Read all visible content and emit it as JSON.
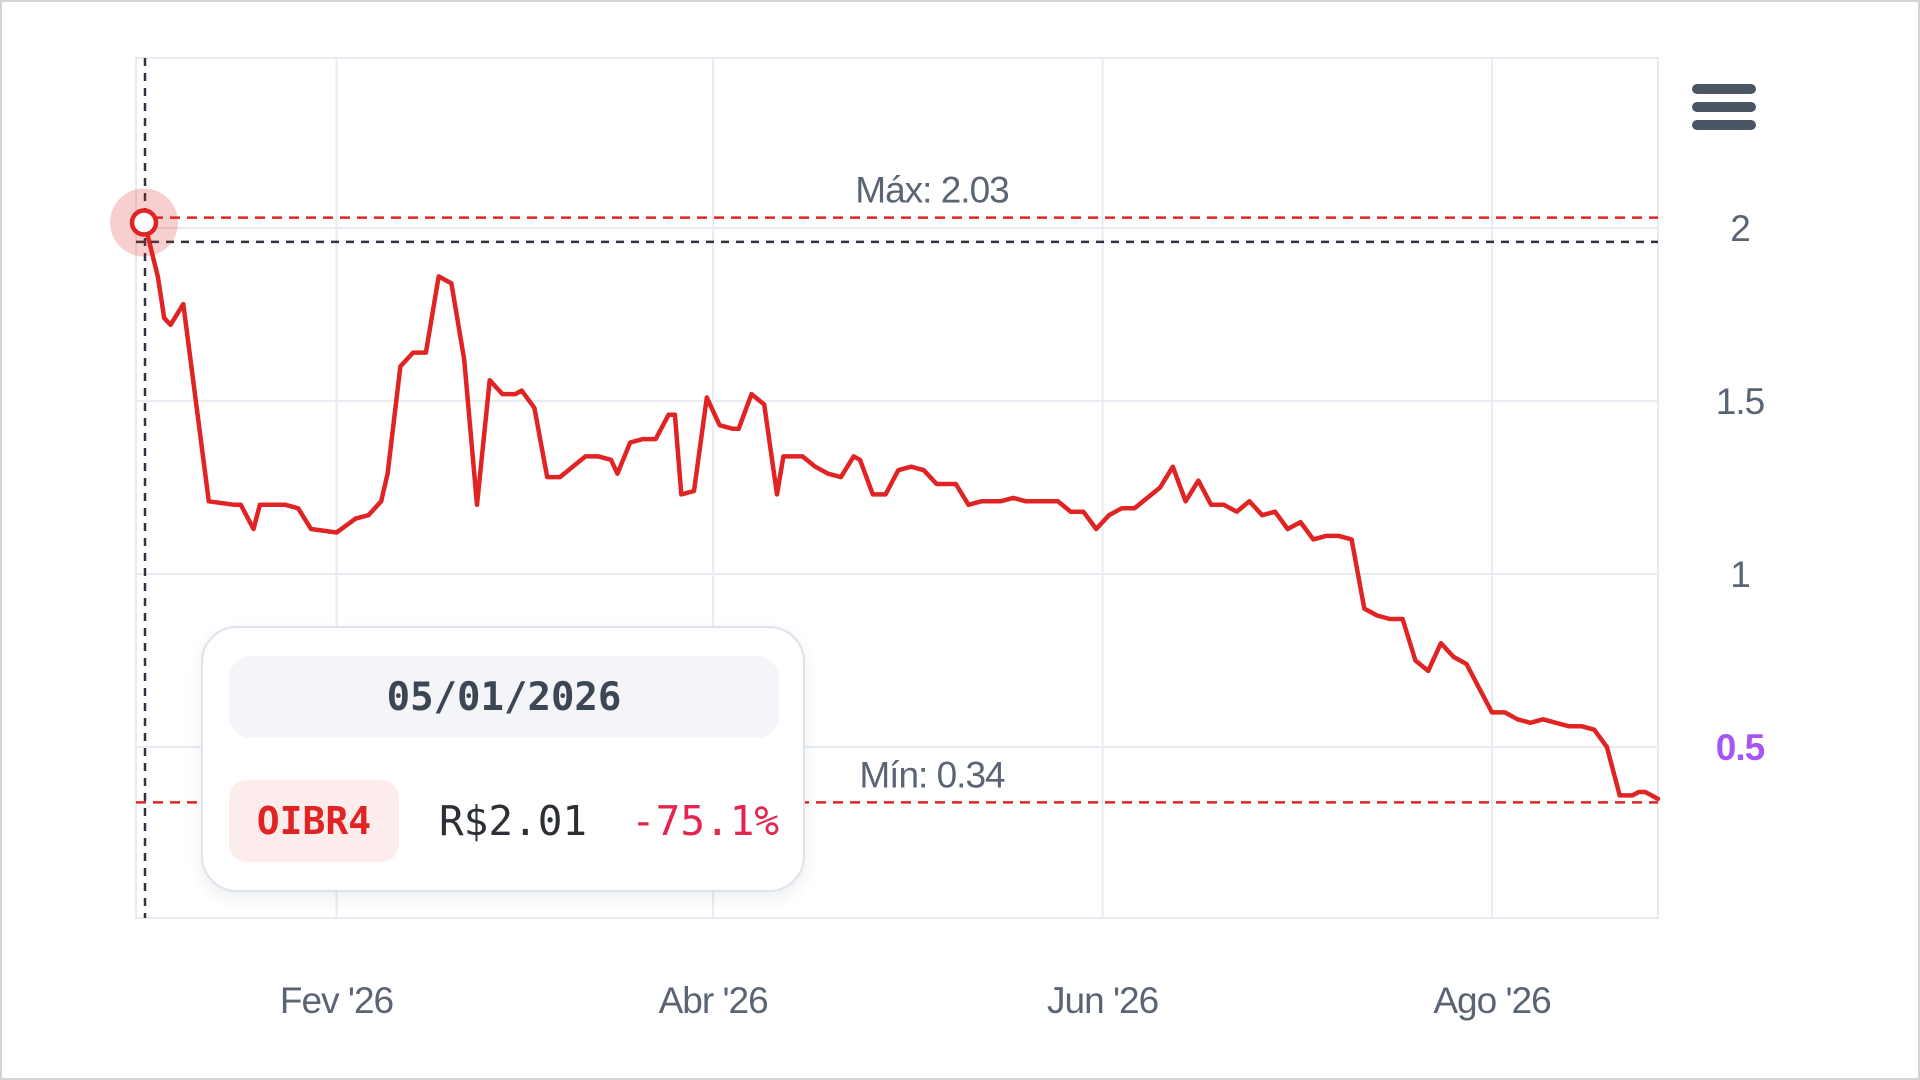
{
  "chart_data": {
    "type": "line",
    "title": "",
    "xlabel": "",
    "ylabel": "",
    "x_ticks": [
      {
        "date": "2026-02-01",
        "label": "Fev '26"
      },
      {
        "date": "2026-04-01",
        "label": "Abr '26"
      },
      {
        "date": "2026-06-01",
        "label": "Jun '26"
      },
      {
        "date": "2026-08-01",
        "label": "Ago '26"
      }
    ],
    "y_ticks": [
      0.5,
      1,
      1.5,
      2
    ],
    "y_tick_labels": [
      "0.5",
      "1",
      "1.5",
      "2"
    ],
    "xlim": [
      "2026-01-01",
      "2026-08-27"
    ],
    "ylim": [
      0,
      2.5
    ],
    "grid": true,
    "last_value_tick": "0.5",
    "reference_lines": {
      "max": {
        "value": 2.03,
        "label": "Máx: 2.03"
      },
      "min": {
        "value": 0.34,
        "label": "Mín: 0.34"
      }
    },
    "crosshair": {
      "date": "2026-01-02",
      "value": 1.96
    },
    "series": [
      {
        "color": "#e02424",
        "points": [
          [
            "2026-01-02",
            2.01
          ],
          [
            "2026-01-04",
            1.86
          ],
          [
            "2026-01-05",
            1.74
          ],
          [
            "2026-01-06",
            1.72
          ],
          [
            "2026-01-08",
            1.78
          ],
          [
            "2026-01-12",
            1.21
          ],
          [
            "2026-01-16",
            1.2
          ],
          [
            "2026-01-17",
            1.2
          ],
          [
            "2026-01-19",
            1.13
          ],
          [
            "2026-01-20",
            1.2
          ],
          [
            "2026-01-24",
            1.2
          ],
          [
            "2026-01-26",
            1.19
          ],
          [
            "2026-01-28",
            1.13
          ],
          [
            "2026-02-01",
            1.12
          ],
          [
            "2026-02-04",
            1.16
          ],
          [
            "2026-02-06",
            1.17
          ],
          [
            "2026-02-08",
            1.21
          ],
          [
            "2026-02-09",
            1.29
          ],
          [
            "2026-02-11",
            1.6
          ],
          [
            "2026-02-13",
            1.64
          ],
          [
            "2026-02-15",
            1.64
          ],
          [
            "2026-02-17",
            1.86
          ],
          [
            "2026-02-19",
            1.84
          ],
          [
            "2026-02-21",
            1.62
          ],
          [
            "2026-02-23",
            1.2
          ],
          [
            "2026-02-25",
            1.56
          ],
          [
            "2026-02-27",
            1.52
          ],
          [
            "2026-03-01",
            1.52
          ],
          [
            "2026-03-02",
            1.53
          ],
          [
            "2026-03-04",
            1.48
          ],
          [
            "2026-03-06",
            1.28
          ],
          [
            "2026-03-08",
            1.28
          ],
          [
            "2026-03-10",
            1.31
          ],
          [
            "2026-03-12",
            1.34
          ],
          [
            "2026-03-14",
            1.34
          ],
          [
            "2026-03-16",
            1.33
          ],
          [
            "2026-03-17",
            1.29
          ],
          [
            "2026-03-19",
            1.38
          ],
          [
            "2026-03-21",
            1.39
          ],
          [
            "2026-03-23",
            1.39
          ],
          [
            "2026-03-25",
            1.46
          ],
          [
            "2026-03-26",
            1.46
          ],
          [
            "2026-03-27",
            1.23
          ],
          [
            "2026-03-29",
            1.24
          ],
          [
            "2026-03-31",
            1.51
          ],
          [
            "2026-04-02",
            1.43
          ],
          [
            "2026-04-04",
            1.42
          ],
          [
            "2026-04-05",
            1.42
          ],
          [
            "2026-04-07",
            1.52
          ],
          [
            "2026-04-09",
            1.49
          ],
          [
            "2026-04-11",
            1.23
          ],
          [
            "2026-04-12",
            1.34
          ],
          [
            "2026-04-15",
            1.34
          ],
          [
            "2026-04-17",
            1.31
          ],
          [
            "2026-04-19",
            1.29
          ],
          [
            "2026-04-21",
            1.28
          ],
          [
            "2026-04-23",
            1.34
          ],
          [
            "2026-04-24",
            1.33
          ],
          [
            "2026-04-26",
            1.23
          ],
          [
            "2026-04-28",
            1.23
          ],
          [
            "2026-04-30",
            1.3
          ],
          [
            "2026-05-02",
            1.31
          ],
          [
            "2026-05-04",
            1.3
          ],
          [
            "2026-05-06",
            1.26
          ],
          [
            "2026-05-09",
            1.26
          ],
          [
            "2026-05-11",
            1.2
          ],
          [
            "2026-05-13",
            1.21
          ],
          [
            "2026-05-16",
            1.21
          ],
          [
            "2026-05-18",
            1.22
          ],
          [
            "2026-05-20",
            1.21
          ],
          [
            "2026-05-25",
            1.21
          ],
          [
            "2026-05-27",
            1.18
          ],
          [
            "2026-05-29",
            1.18
          ],
          [
            "2026-05-31",
            1.13
          ],
          [
            "2026-06-02",
            1.17
          ],
          [
            "2026-06-04",
            1.19
          ],
          [
            "2026-06-06",
            1.19
          ],
          [
            "2026-06-08",
            1.22
          ],
          [
            "2026-06-10",
            1.25
          ],
          [
            "2026-06-12",
            1.31
          ],
          [
            "2026-06-14",
            1.21
          ],
          [
            "2026-06-16",
            1.27
          ],
          [
            "2026-06-18",
            1.2
          ],
          [
            "2026-06-20",
            1.2
          ],
          [
            "2026-06-22",
            1.18
          ],
          [
            "2026-06-24",
            1.21
          ],
          [
            "2026-06-26",
            1.17
          ],
          [
            "2026-06-28",
            1.18
          ],
          [
            "2026-06-30",
            1.13
          ],
          [
            "2026-07-02",
            1.15
          ],
          [
            "2026-07-04",
            1.1
          ],
          [
            "2026-07-06",
            1.11
          ],
          [
            "2026-07-08",
            1.11
          ],
          [
            "2026-07-10",
            1.1
          ],
          [
            "2026-07-12",
            0.9
          ],
          [
            "2026-07-14",
            0.88
          ],
          [
            "2026-07-16",
            0.87
          ],
          [
            "2026-07-18",
            0.87
          ],
          [
            "2026-07-20",
            0.75
          ],
          [
            "2026-07-22",
            0.72
          ],
          [
            "2026-07-24",
            0.8
          ],
          [
            "2026-07-26",
            0.76
          ],
          [
            "2026-07-28",
            0.74
          ],
          [
            "2026-07-30",
            0.67
          ],
          [
            "2026-08-01",
            0.6
          ],
          [
            "2026-08-03",
            0.6
          ],
          [
            "2026-08-05",
            0.58
          ],
          [
            "2026-08-07",
            0.57
          ],
          [
            "2026-08-09",
            0.58
          ],
          [
            "2026-08-11",
            0.57
          ],
          [
            "2026-08-13",
            0.56
          ],
          [
            "2026-08-15",
            0.56
          ],
          [
            "2026-08-17",
            0.55
          ],
          [
            "2026-08-19",
            0.5
          ],
          [
            "2026-08-21",
            0.36
          ],
          [
            "2026-08-22",
            0.36
          ],
          [
            "2026-08-23",
            0.36
          ],
          [
            "2026-08-24",
            0.37
          ],
          [
            "2026-08-25",
            0.37
          ],
          [
            "2026-08-26",
            0.36
          ],
          [
            "2026-08-27",
            0.35
          ]
        ]
      }
    ]
  },
  "tooltip": {
    "date": "05/01/2026",
    "ticker": "OIBR4",
    "price": "R$2.01",
    "change": "-75.1%"
  },
  "colors": {
    "line": "#e02424",
    "last_value": "#a855f7",
    "axis_text": "#5b6473",
    "grid": "#e8ebf1"
  },
  "menu": {
    "icon": "hamburger-menu-icon"
  }
}
